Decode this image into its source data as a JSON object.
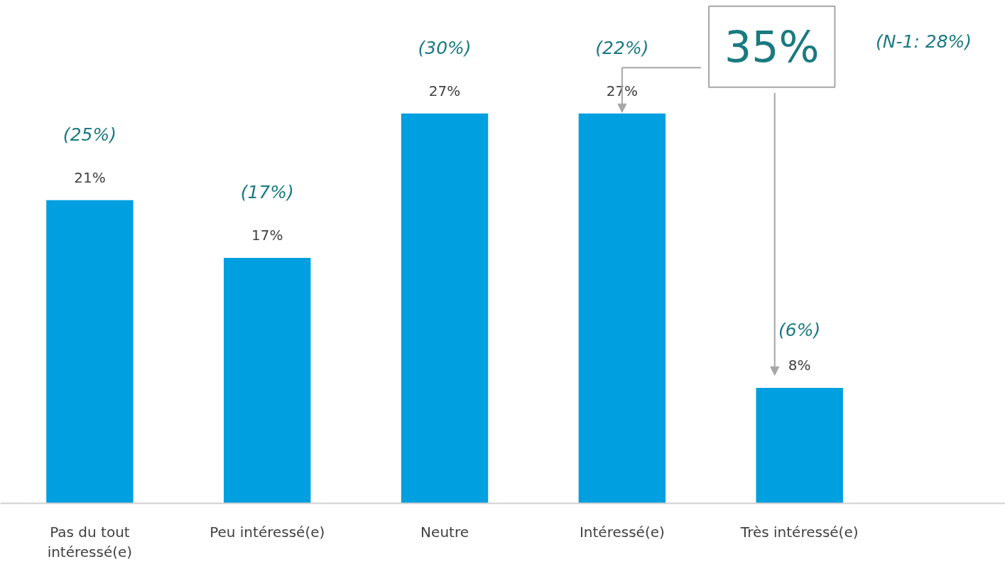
{
  "chart_data": {
    "type": "bar",
    "categories": [
      "Pas du tout intéressé(e)",
      "Peu intéressé(e)",
      "Neutre",
      "Intéressé(e)",
      "Très intéressé(e)"
    ],
    "values": [
      21,
      17,
      27,
      27,
      8
    ],
    "color": "#009fe0",
    "data_labels": true,
    "value_labels": [
      "21%",
      "17%",
      "27%",
      "27%",
      "8%"
    ],
    "annotations": [
      "(25%)",
      "(17%)",
      "(30%)",
      "(22%)",
      "(6%)",
      "35%",
      "(N-1: 28%)"
    ]
  }
}
